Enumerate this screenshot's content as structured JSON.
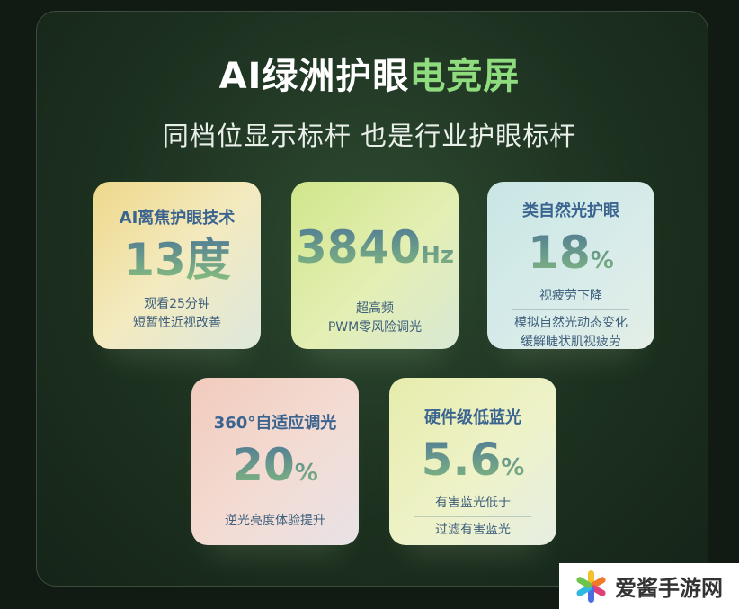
{
  "title": {
    "white": "AI绿洲护眼",
    "green": "电竞屏"
  },
  "subtitle": "同档位显示标杆  也是行业护眼标杆",
  "cards": [
    {
      "heading": "AI离焦护眼技术",
      "value": "13",
      "unit": "度",
      "lines": [
        "观看25分钟",
        "短暂性近视改善"
      ]
    },
    {
      "heading": "",
      "value": "3840",
      "unit": "Hz",
      "lines": [
        "超高频",
        "PWM零风险调光"
      ]
    },
    {
      "heading": "类自然光护眼",
      "value": "18",
      "unit": "%",
      "lines": [
        "视疲劳下降",
        "模拟自然光动态变化",
        "缓解睫状肌视疲劳"
      ]
    },
    {
      "heading": "360°自适应调光",
      "value": "20",
      "unit": "%",
      "lines": [
        "逆光亮度体验提升"
      ]
    },
    {
      "heading": "硬件级低蓝光",
      "value": "5.6",
      "unit": "%",
      "lines": [
        "有害蓝光低于",
        "过滤有害蓝光"
      ]
    }
  ],
  "watermark": {
    "text": "爱酱手游网",
    "icon": "flower-logo-icon"
  }
}
